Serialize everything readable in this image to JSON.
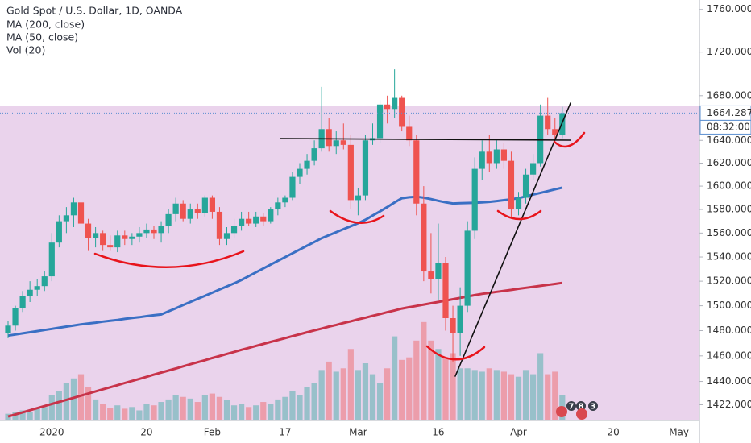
{
  "chart_data": {
    "type": "candlestick",
    "title": "Gold Spot / U.S. Dollar, 1D, OANDA",
    "categories": [
      null,
      null,
      null,
      null,
      null,
      null,
      "2020",
      null,
      null,
      null,
      null,
      null,
      null,
      null,
      null,
      null,
      null,
      null,
      null,
      "20",
      null,
      null,
      null,
      null,
      null,
      null,
      null,
      null,
      "Feb",
      null,
      null,
      null,
      null,
      null,
      null,
      null,
      null,
      null,
      "17",
      null,
      null,
      null,
      null,
      null,
      null,
      null,
      null,
      null,
      "Mar",
      null,
      null,
      null,
      null,
      null,
      null,
      null,
      null,
      null,
      null,
      "16",
      null,
      null,
      null,
      null,
      null,
      null,
      null,
      null,
      null,
      null,
      "Apr",
      null,
      null,
      null,
      null,
      null,
      null,
      null,
      null,
      null,
      null,
      null,
      null,
      "20",
      null,
      null,
      null,
      null,
      null,
      null,
      null,
      null,
      "May",
      null,
      null
    ],
    "open": [
      1478,
      1484,
      1498,
      1508,
      1513,
      1516,
      1524,
      1552,
      1570,
      1575,
      1586,
      1568,
      1556,
      1560,
      1550,
      1548,
      1558,
      1555,
      1557,
      1560,
      1563,
      1560,
      1566,
      1576,
      1585,
      1572,
      1580,
      1577,
      1590,
      1578,
      1555,
      1560,
      1566,
      1572,
      1568,
      1574,
      1570,
      1580,
      1586,
      1590,
      1608,
      1615,
      1622,
      1633,
      1650,
      1635,
      1640,
      1636,
      1588,
      1592,
      1640,
      1642,
      1672,
      1668,
      1678,
      1652,
      1640,
      1585,
      1528,
      1522,
      1535,
      1490,
      1478,
      1500,
      1562,
      1615,
      1630,
      1620,
      1632,
      1622,
      1580,
      1590,
      1610,
      1620,
      1662,
      1650,
      1645,
      null,
      null,
      null,
      null,
      null,
      null,
      null,
      null,
      null,
      null,
      null,
      null,
      null,
      null,
      null,
      null,
      null,
      null
    ],
    "high": [
      1488,
      1500,
      1512,
      1520,
      1522,
      1528,
      1560,
      1575,
      1582,
      1590,
      1611,
      1572,
      1565,
      1562,
      1558,
      1562,
      1562,
      1560,
      1565,
      1568,
      1566,
      1570,
      1580,
      1590,
      1588,
      1585,
      1585,
      1592,
      1592,
      1582,
      1565,
      1572,
      1578,
      1578,
      1578,
      1577,
      1582,
      1590,
      1592,
      1612,
      1620,
      1628,
      1640,
      1688,
      1660,
      1648,
      1655,
      1645,
      1598,
      1645,
      1655,
      1676,
      1680,
      1704,
      1680,
      1662,
      1645,
      1600,
      1560,
      1568,
      1540,
      1500,
      1515,
      1570,
      1625,
      1640,
      1645,
      1640,
      1638,
      1630,
      1595,
      1615,
      1628,
      1672,
      1678,
      1660,
      1670,
      null,
      null,
      null,
      null,
      null,
      null,
      null,
      null,
      null,
      null,
      null,
      null,
      null,
      null,
      null,
      null,
      null,
      null
    ],
    "low": [
      1474,
      1480,
      1495,
      1503,
      1508,
      1512,
      1520,
      1548,
      1560,
      1565,
      1555,
      1545,
      1548,
      1545,
      1545,
      1544,
      1550,
      1550,
      1552,
      1556,
      1555,
      1552,
      1560,
      1570,
      1570,
      1568,
      1572,
      1574,
      1572,
      1550,
      1550,
      1556,
      1562,
      1566,
      1565,
      1566,
      1568,
      1575,
      1582,
      1588,
      1602,
      1610,
      1618,
      1630,
      1630,
      1628,
      1632,
      1580,
      1575,
      1588,
      1636,
      1638,
      1655,
      1660,
      1648,
      1635,
      1575,
      1520,
      1510,
      1505,
      1480,
      1455,
      1460,
      1495,
      1555,
      1605,
      1612,
      1615,
      1615,
      1572,
      1575,
      1585,
      1605,
      1617,
      1645,
      1640,
      1642,
      null,
      null,
      null,
      null,
      null,
      null,
      null,
      null,
      null,
      null,
      null,
      null,
      null,
      null,
      null,
      null,
      null,
      null
    ],
    "close": [
      1484,
      1498,
      1508,
      1513,
      1516,
      1524,
      1552,
      1570,
      1575,
      1586,
      1568,
      1556,
      1560,
      1550,
      1548,
      1558,
      1555,
      1557,
      1560,
      1563,
      1560,
      1566,
      1576,
      1585,
      1572,
      1580,
      1577,
      1590,
      1578,
      1555,
      1560,
      1566,
      1572,
      1568,
      1574,
      1570,
      1580,
      1586,
      1590,
      1608,
      1615,
      1622,
      1633,
      1650,
      1635,
      1640,
      1636,
      1588,
      1592,
      1640,
      1642,
      1672,
      1668,
      1678,
      1652,
      1640,
      1585,
      1528,
      1522,
      1535,
      1490,
      1478,
      1500,
      1562,
      1615,
      1630,
      1620,
      1632,
      1622,
      1580,
      1590,
      1610,
      1620,
      1662,
      1650,
      1645,
      1664.287,
      null,
      null,
      null,
      null,
      null,
      null,
      null,
      null,
      null,
      null,
      null,
      null,
      null,
      null,
      null,
      null,
      null,
      null
    ],
    "up_color": "#26a69a",
    "down_color": "#ef5350",
    "series": [
      {
        "name": "MA (200, close)",
        "color": "#c8334a",
        "values": [
          1413.0,
          1414.6,
          1416.2,
          1417.8,
          1419.4,
          1421.0,
          1422.6,
          1424.2,
          1425.8,
          1427.4,
          1429.0,
          1430.6,
          1432.3,
          1433.9,
          1435.5,
          1437.1,
          1438.8,
          1440.4,
          1442.0,
          1443.6,
          1445.3,
          1446.9,
          1448.5,
          1450.1,
          1451.8,
          1453.4,
          1455.0,
          1456.6,
          1458.3,
          1459.9,
          1461.5,
          1463.1,
          1464.8,
          1466.3,
          1467.9,
          1469.4,
          1471.0,
          1472.5,
          1474.0,
          1475.6,
          1477.1,
          1478.7,
          1480.2,
          1481.7,
          1483.2,
          1484.6,
          1486.1,
          1487.5,
          1489.0,
          1490.4,
          1491.9,
          1493.3,
          1494.8,
          1496.2,
          1497.7,
          1498.8,
          1499.9,
          1501.0,
          1502.0,
          1503.1,
          1504.2,
          1505.3,
          1506.4,
          1507.5,
          1508.6,
          1509.7,
          1510.5,
          1511.3,
          1512.1,
          1512.9,
          1513.8,
          1514.6,
          1515.4,
          1516.2,
          1517.0,
          1517.8,
          1518.6,
          null,
          null,
          null,
          null,
          null,
          null,
          null,
          null,
          null,
          null,
          null,
          null,
          null,
          null,
          null,
          null,
          null,
          null
        ]
      },
      {
        "name": "MA (50, close)",
        "color": "#3a6fc4",
        "values": [
          1476.0,
          1476.9,
          1477.8,
          1478.7,
          1479.6,
          1480.5,
          1481.4,
          1482.3,
          1483.2,
          1484.1,
          1485.0,
          1485.7,
          1486.4,
          1487.2,
          1487.9,
          1488.6,
          1489.4,
          1490.1,
          1490.8,
          1491.6,
          1492.3,
          1493.0,
          1495.5,
          1498.0,
          1500.6,
          1503.1,
          1505.6,
          1508.1,
          1510.6,
          1513.2,
          1515.7,
          1518.2,
          1521.0,
          1524.2,
          1527.3,
          1530.5,
          1533.6,
          1536.8,
          1539.9,
          1543.1,
          1546.2,
          1549.4,
          1552.5,
          1555.7,
          1558.2,
          1560.8,
          1563.3,
          1565.8,
          1568.3,
          1571.2,
          1574.8,
          1578.4,
          1582.0,
          1586.0,
          1589.6,
          1590.4,
          1590.9,
          1590.1,
          1588.8,
          1587.4,
          1586.1,
          1585.1,
          1585.3,
          1585.5,
          1585.7,
          1586.0,
          1586.5,
          1587.2,
          1587.9,
          1588.6,
          1589.7,
          1591.2,
          1592.7,
          1594.2,
          1595.7,
          1597.2,
          1598.7,
          null,
          null,
          null,
          null,
          null,
          null,
          null,
          null,
          null,
          null,
          null,
          null,
          null,
          null,
          null,
          null,
          null,
          null
        ]
      }
    ],
    "volume": {
      "name": "Vol (20)",
      "values": [
        8,
        10,
        12,
        10,
        14,
        16,
        30,
        35,
        45,
        50,
        55,
        40,
        25,
        20,
        15,
        18,
        14,
        16,
        12,
        20,
        18,
        22,
        25,
        30,
        28,
        26,
        22,
        30,
        32,
        28,
        24,
        18,
        20,
        16,
        18,
        22,
        20,
        25,
        28,
        35,
        30,
        40,
        45,
        60,
        70,
        58,
        62,
        85,
        60,
        68,
        55,
        45,
        62,
        100,
        72,
        75,
        95,
        117,
        95,
        85,
        75,
        80,
        62,
        62,
        60,
        58,
        62,
        60,
        58,
        55,
        52,
        60,
        55,
        80,
        55,
        58,
        30,
        null,
        null,
        null,
        null,
        null,
        null,
        null,
        null,
        null,
        null,
        null,
        null,
        null,
        null,
        null,
        null,
        null,
        null
      ]
    },
    "volume_ylim": [
      0,
      500
    ],
    "ylim": [
      1410,
      1769
    ],
    "log_scale": true,
    "grid": false,
    "yticks": [
      {
        "value": 1422,
        "label": "1422.000"
      },
      {
        "value": 1440,
        "label": "1440.000"
      },
      {
        "value": 1460,
        "label": "1460.000"
      },
      {
        "value": 1480,
        "label": "1480.000"
      },
      {
        "value": 1500,
        "label": "1500.000"
      },
      {
        "value": 1520,
        "label": "1520.000"
      },
      {
        "value": 1540,
        "label": "1540.000"
      },
      {
        "value": 1560,
        "label": "1560.000"
      },
      {
        "value": 1580,
        "label": "1580.000"
      },
      {
        "value": 1600,
        "label": "1600.000"
      },
      {
        "value": 1620,
        "label": "1620.000"
      },
      {
        "value": 1640,
        "label": "1640.000"
      },
      {
        "value": 1680,
        "label": "1680.000"
      },
      {
        "value": 1720,
        "label": "1720.000"
      },
      {
        "value": 1760,
        "label": "1760.000"
      }
    ],
    "countdown": "08:32:00",
    "event_badges": [
      7,
      8,
      3
    ]
  }
}
